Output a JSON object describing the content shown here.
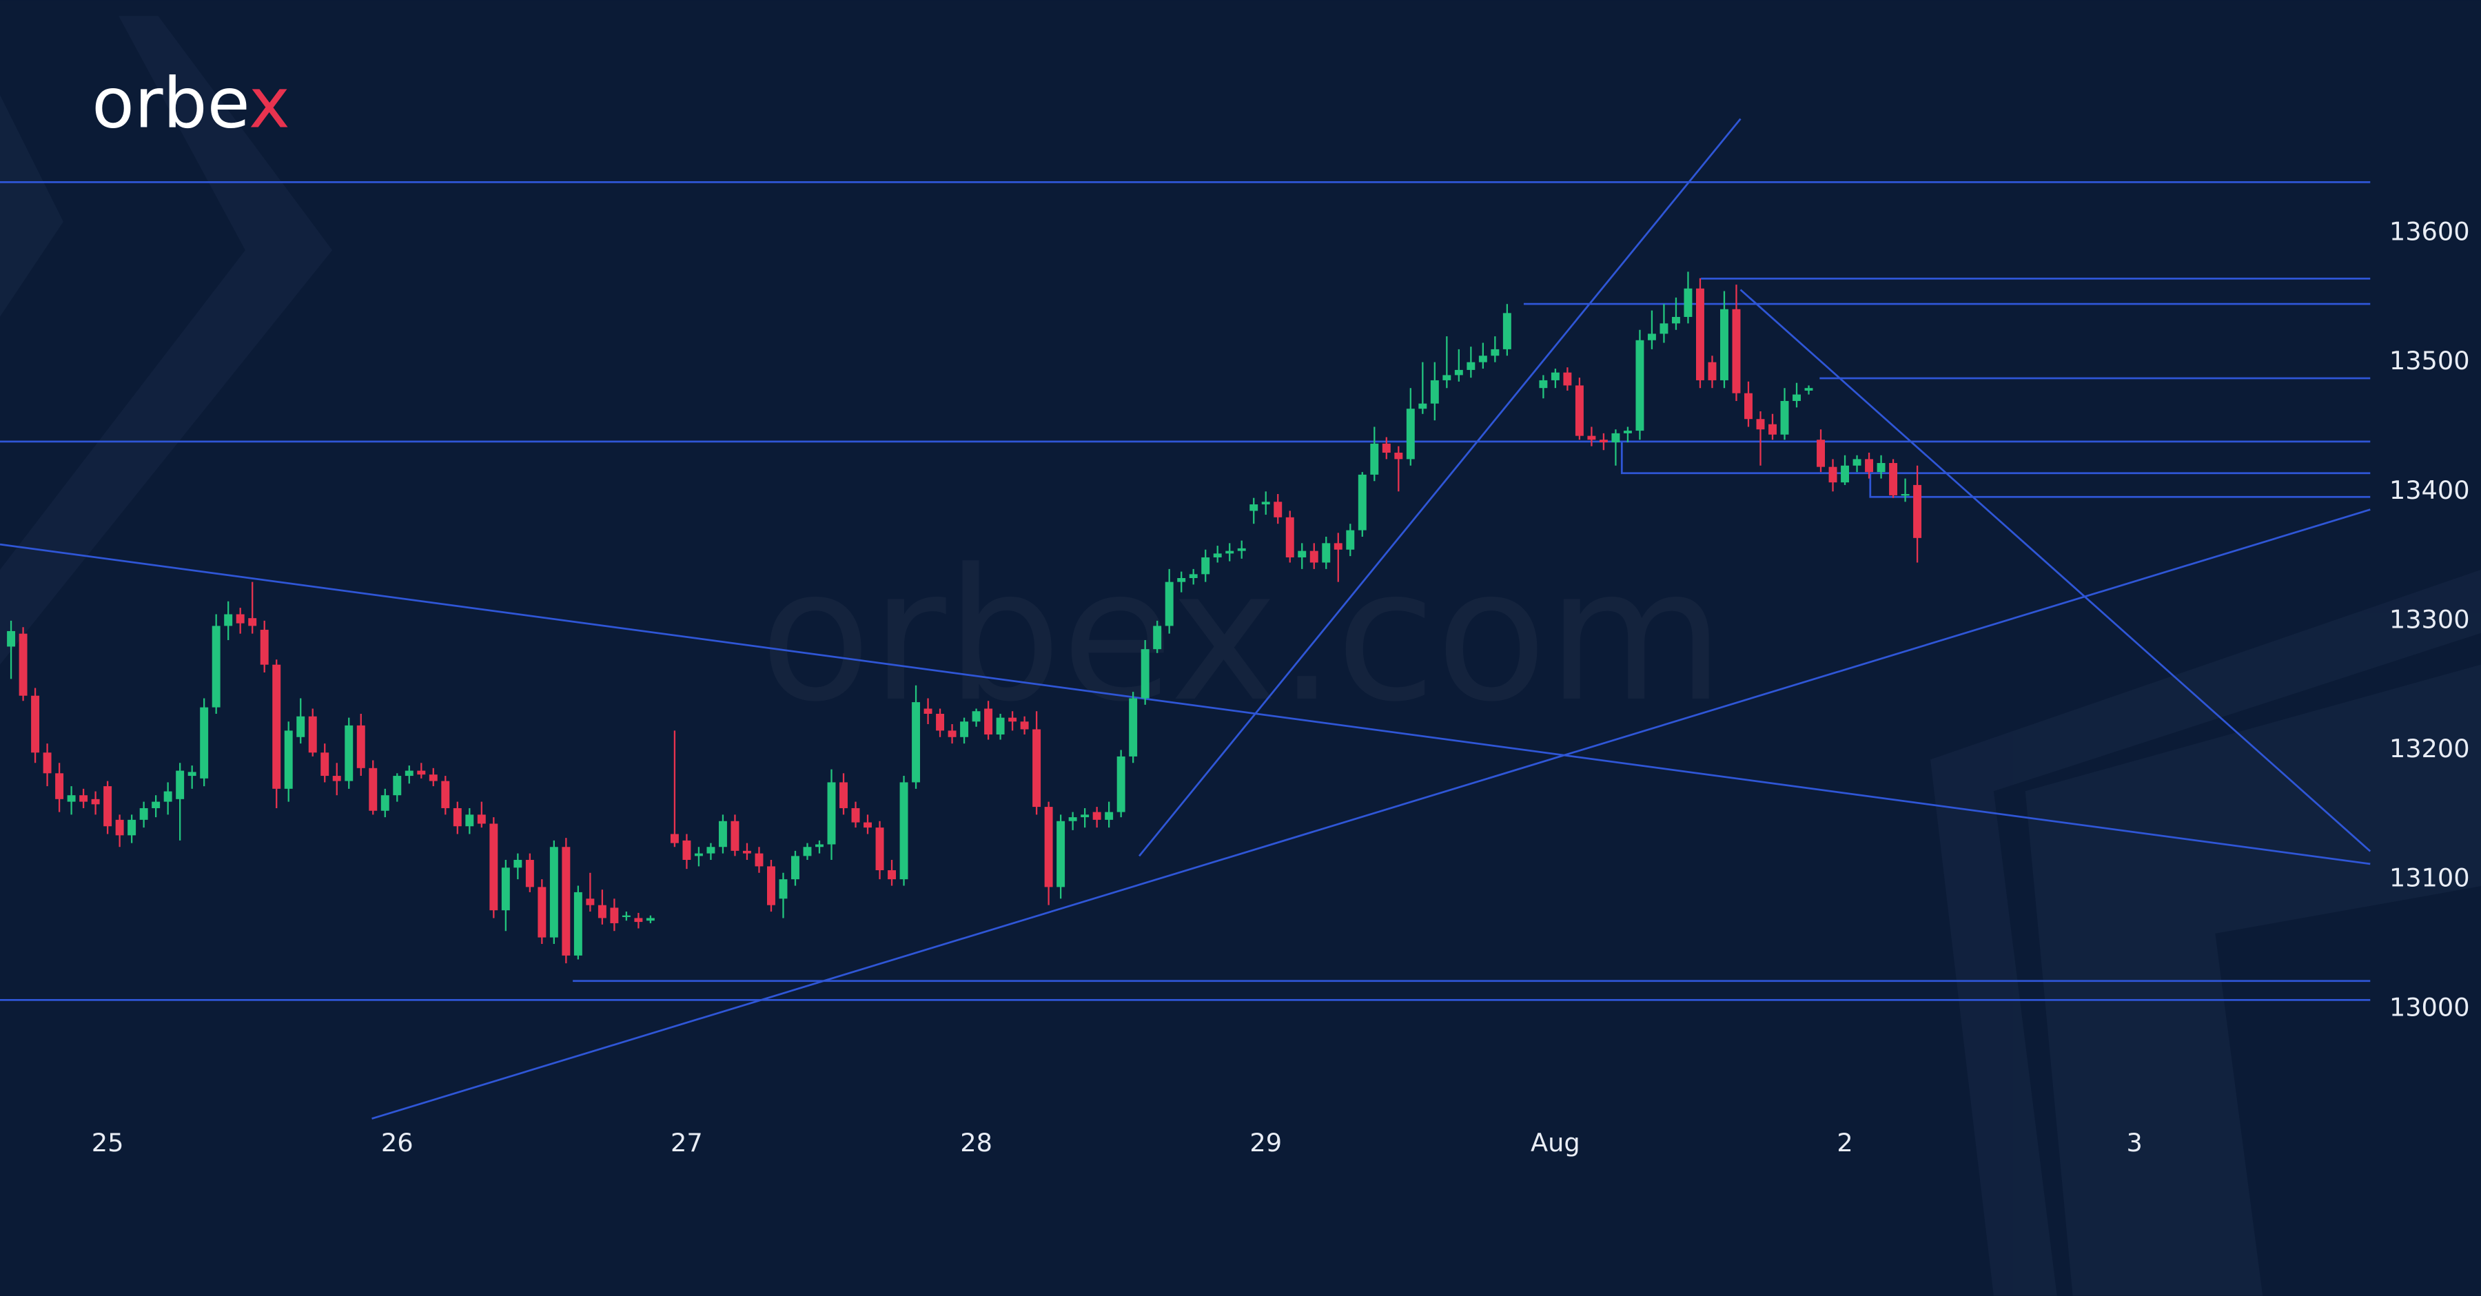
{
  "logo": "orbex",
  "watermark": "orbex.com",
  "chart_data": {
    "type": "candlestick",
    "categories": [
      null,
      null,
      null,
      null,
      null,
      null,
      null,
      null,
      "25",
      null,
      null,
      null,
      null,
      null,
      null,
      null,
      null,
      null,
      null,
      null,
      null,
      null,
      null,
      null,
      null,
      null,
      null,
      null,
      null,
      null,
      null,
      null,
      "26",
      null,
      null,
      null,
      null,
      null,
      null,
      null,
      null,
      null,
      null,
      null,
      null,
      null,
      null,
      null,
      null,
      null,
      null,
      null,
      null,
      null,
      null,
      null,
      "27",
      null,
      null,
      null,
      null,
      null,
      null,
      null,
      null,
      null,
      null,
      null,
      null,
      null,
      null,
      null,
      null,
      null,
      null,
      null,
      null,
      null,
      null,
      null,
      "28",
      null,
      null,
      null,
      null,
      null,
      null,
      null,
      null,
      null,
      null,
      null,
      null,
      null,
      null,
      null,
      null,
      null,
      null,
      null,
      null,
      null,
      null,
      null,
      "29",
      null,
      null,
      null,
      null,
      null,
      null,
      null,
      null,
      null,
      null,
      null,
      null,
      null,
      null,
      null,
      null,
      null,
      null,
      null,
      null,
      null,
      null,
      null,
      "Aug",
      null,
      null,
      null,
      null,
      null,
      null,
      null,
      null,
      null,
      null,
      null,
      null,
      null,
      null,
      null,
      null,
      null,
      null,
      null,
      null,
      null,
      null,
      null,
      "2",
      null,
      null,
      null,
      null,
      null,
      null,
      null,
      null,
      null,
      null,
      null,
      null,
      null,
      null,
      null,
      null,
      null,
      null,
      null,
      null,
      null,
      null,
      null,
      "3",
      null,
      null,
      null,
      null,
      null,
      null,
      null,
      null,
      null,
      null,
      null,
      null,
      null,
      null,
      null,
      null,
      null,
      null,
      null
    ],
    "ohlc": [
      [
        13280,
        13300,
        13255,
        13292
      ],
      [
        13290,
        13295,
        13238,
        13242
      ],
      [
        13242,
        13248,
        13190,
        13198
      ],
      [
        13198,
        13205,
        13172,
        13182
      ],
      [
        13182,
        13190,
        13152,
        13162
      ],
      [
        13160,
        13172,
        13150,
        13165
      ],
      [
        13165,
        13170,
        13155,
        13160
      ],
      [
        13162,
        13168,
        13150,
        13158
      ],
      [
        13172,
        13176,
        13135,
        13141
      ],
      [
        13146,
        13150,
        13125,
        13134
      ],
      [
        13134,
        13150,
        13128,
        13146
      ],
      [
        13146,
        13160,
        13140,
        13155
      ],
      [
        13155,
        13165,
        13148,
        13160
      ],
      [
        13160,
        13175,
        13150,
        13168
      ],
      [
        13162,
        13190,
        13130,
        13184
      ],
      [
        13180,
        13188,
        13170,
        13183
      ],
      [
        13178,
        13240,
        13172,
        13233
      ],
      [
        13233,
        13305,
        13228,
        13296
      ],
      [
        13296,
        13315,
        13285,
        13305
      ],
      [
        13305,
        13310,
        13290,
        13298
      ],
      [
        13302,
        13330,
        13290,
        13296
      ],
      [
        13293,
        13300,
        13260,
        13266
      ],
      [
        13266,
        13270,
        13155,
        13170
      ],
      [
        13170,
        13222,
        13160,
        13215
      ],
      [
        13210,
        13240,
        13205,
        13226
      ],
      [
        13226,
        13232,
        13195,
        13198
      ],
      [
        13198,
        13205,
        13175,
        13180
      ],
      [
        13180,
        13190,
        13165,
        13176
      ],
      [
        13176,
        13225,
        13170,
        13219
      ],
      [
        13219,
        13228,
        13180,
        13186
      ],
      [
        13186,
        13192,
        13150,
        13153
      ],
      [
        13153,
        13170,
        13148,
        13165
      ],
      [
        13165,
        13182,
        13160,
        13180
      ],
      [
        13180,
        13188,
        13174,
        13184
      ],
      [
        13184,
        13190,
        13178,
        13181
      ],
      [
        13181,
        13186,
        13172,
        13176
      ],
      [
        13176,
        13180,
        13150,
        13155
      ],
      [
        13155,
        13160,
        13135,
        13141
      ],
      [
        13141,
        13155,
        13135,
        13150
      ],
      [
        13150,
        13160,
        13140,
        13143
      ],
      [
        13143,
        13148,
        13070,
        13076
      ],
      [
        13076,
        13115,
        13060,
        13109
      ],
      [
        13109,
        13120,
        13100,
        13115
      ],
      [
        13115,
        13120,
        13090,
        13094
      ],
      [
        13094,
        13100,
        13050,
        13055
      ],
      [
        13055,
        13130,
        13050,
        13125
      ],
      [
        13125,
        13132,
        13035,
        13041
      ],
      [
        13041,
        13095,
        13038,
        13090
      ],
      [
        13085,
        13105,
        13075,
        13080
      ],
      [
        13080,
        13092,
        13065,
        13070
      ],
      [
        13078,
        13085,
        13060,
        13066
      ],
      [
        13072,
        13075,
        13068,
        13072
      ],
      [
        13070,
        13074,
        13062,
        13067
      ],
      [
        13068,
        13072,
        13066,
        13070
      ],
      null,
      [
        13135,
        13215,
        13125,
        13128
      ],
      [
        13130,
        13135,
        13108,
        13115
      ],
      [
        13118,
        13125,
        13110,
        13120
      ],
      [
        13120,
        13128,
        13115,
        13125
      ],
      [
        13125,
        13150,
        13120,
        13145
      ],
      [
        13145,
        13150,
        13118,
        13122
      ],
      [
        13122,
        13128,
        13115,
        13120
      ],
      [
        13120,
        13125,
        13105,
        13110
      ],
      [
        13110,
        13115,
        13075,
        13080
      ],
      [
        13085,
        13105,
        13070,
        13100
      ],
      [
        13100,
        13122,
        13095,
        13118
      ],
      [
        13118,
        13128,
        13115,
        13125
      ],
      [
        13125,
        13130,
        13120,
        13127
      ],
      [
        13127,
        13185,
        13115,
        13175
      ],
      [
        13175,
        13182,
        13150,
        13155
      ],
      [
        13155,
        13160,
        13140,
        13144
      ],
      [
        13144,
        13150,
        13135,
        13140
      ],
      [
        13140,
        13145,
        13100,
        13107
      ],
      [
        13107,
        13115,
        13095,
        13100
      ],
      [
        13100,
        13180,
        13095,
        13175
      ],
      [
        13175,
        13250,
        13170,
        13237
      ],
      [
        13232,
        13240,
        13220,
        13228
      ],
      [
        13228,
        13232,
        13210,
        13215
      ],
      [
        13215,
        13220,
        13205,
        13210
      ],
      [
        13210,
        13225,
        13205,
        13222
      ],
      [
        13222,
        13232,
        13218,
        13230
      ],
      [
        13232,
        13238,
        13208,
        13212
      ],
      [
        13212,
        13228,
        13208,
        13225
      ],
      [
        13225,
        13230,
        13215,
        13222
      ],
      [
        13222,
        13226,
        13212,
        13216
      ],
      [
        13216,
        13230,
        13150,
        13156
      ],
      [
        13156,
        13160,
        13080,
        13094
      ],
      [
        13094,
        13150,
        13085,
        13145
      ],
      [
        13145,
        13152,
        13138,
        13148
      ],
      [
        13148,
        13155,
        13140,
        13150
      ],
      [
        13152,
        13156,
        13140,
        13146
      ],
      [
        13146,
        13160,
        13140,
        13152
      ],
      [
        13152,
        13200,
        13148,
        13195
      ],
      [
        13195,
        13245,
        13190,
        13240
      ],
      [
        13240,
        13285,
        13235,
        13278
      ],
      [
        13278,
        13300,
        13275,
        13296
      ],
      [
        13296,
        13340,
        13290,
        13330
      ],
      [
        13330,
        13338,
        13322,
        13333
      ],
      [
        13333,
        13340,
        13328,
        13336
      ],
      [
        13336,
        13355,
        13330,
        13349
      ],
      [
        13349,
        13358,
        13345,
        13352
      ],
      [
        13352,
        13360,
        13346,
        13354
      ],
      [
        13354,
        13362,
        13348,
        13356
      ],
      [
        13385,
        13395,
        13375,
        13390
      ],
      [
        13390,
        13400,
        13382,
        13392
      ],
      [
        13392,
        13398,
        13375,
        13380
      ],
      [
        13380,
        13385,
        13345,
        13349
      ],
      [
        13349,
        13360,
        13340,
        13354
      ],
      [
        13354,
        13360,
        13340,
        13345
      ],
      [
        13345,
        13365,
        13340,
        13360
      ],
      [
        13360,
        13368,
        13330,
        13355
      ],
      [
        13355,
        13375,
        13350,
        13370
      ],
      [
        13370,
        13415,
        13365,
        13413
      ],
      [
        13413,
        13450,
        13408,
        13437
      ],
      [
        13437,
        13442,
        13425,
        13430
      ],
      [
        13430,
        13435,
        13400,
        13425
      ],
      [
        13425,
        13480,
        13420,
        13464
      ],
      [
        13464,
        13500,
        13460,
        13468
      ],
      [
        13468,
        13500,
        13455,
        13486
      ],
      [
        13486,
        13520,
        13480,
        13490
      ],
      [
        13490,
        13510,
        13485,
        13494
      ],
      [
        13494,
        13512,
        13488,
        13500
      ],
      [
        13500,
        13515,
        13495,
        13505
      ],
      [
        13505,
        13520,
        13500,
        13510
      ],
      [
        13510,
        13545,
        13505,
        13538
      ],
      null,
      null,
      [
        13480,
        13490,
        13472,
        13486
      ],
      [
        13486,
        13495,
        13480,
        13492
      ],
      [
        13492,
        13496,
        13478,
        13482
      ],
      [
        13482,
        13488,
        13440,
        13443
      ],
      [
        13443,
        13450,
        13435,
        13440
      ],
      [
        13440,
        13445,
        13432,
        13438
      ],
      [
        13438,
        13448,
        13420,
        13445
      ],
      [
        13445,
        13450,
        13438,
        13447
      ],
      [
        13447,
        13525,
        13440,
        13517
      ],
      [
        13517,
        13540,
        13510,
        13522
      ],
      [
        13522,
        13545,
        13515,
        13530
      ],
      [
        13530,
        13550,
        13525,
        13535
      ],
      [
        13535,
        13570,
        13530,
        13557
      ],
      [
        13557,
        13565,
        13480,
        13486
      ],
      [
        13500,
        13505,
        13480,
        13486
      ],
      [
        13486,
        13555,
        13480,
        13541
      ],
      [
        13541,
        13560,
        13470,
        13476
      ],
      [
        13476,
        13485,
        13450,
        13456
      ],
      [
        13456,
        13462,
        13420,
        13448
      ],
      [
        13452,
        13460,
        13440,
        13444
      ],
      [
        13444,
        13480,
        13440,
        13470
      ],
      [
        13470,
        13484,
        13465,
        13475
      ],
      [
        13478,
        13482,
        13475,
        13480
      ],
      [
        13440,
        13448,
        13415,
        13419
      ],
      [
        13419,
        13425,
        13400,
        13407
      ],
      [
        13407,
        13428,
        13405,
        13420
      ],
      [
        13420,
        13428,
        13415,
        13425
      ],
      [
        13425,
        13430,
        13410,
        13415
      ],
      [
        13415,
        13428,
        13410,
        13422
      ],
      [
        13422,
        13425,
        13395,
        13397
      ],
      [
        13397,
        13410,
        13392,
        13398
      ],
      [
        13405,
        13420,
        13345,
        13364
      ],
      null,
      null,
      null,
      null,
      null,
      null,
      null,
      null,
      null,
      null,
      null,
      null,
      null,
      null,
      null,
      null,
      null,
      null,
      null,
      null,
      null,
      null,
      null,
      null,
      null,
      null,
      null,
      null,
      null,
      null,
      null,
      null,
      null,
      null,
      null,
      null
    ],
    "ylim": [
      12850,
      13780
    ],
    "yticks": [
      13000,
      13100,
      13200,
      13300,
      13400,
      13500,
      13600
    ],
    "grid": false,
    "colors": {
      "up": "#22c47e",
      "down": "#e8334f"
    }
  }
}
